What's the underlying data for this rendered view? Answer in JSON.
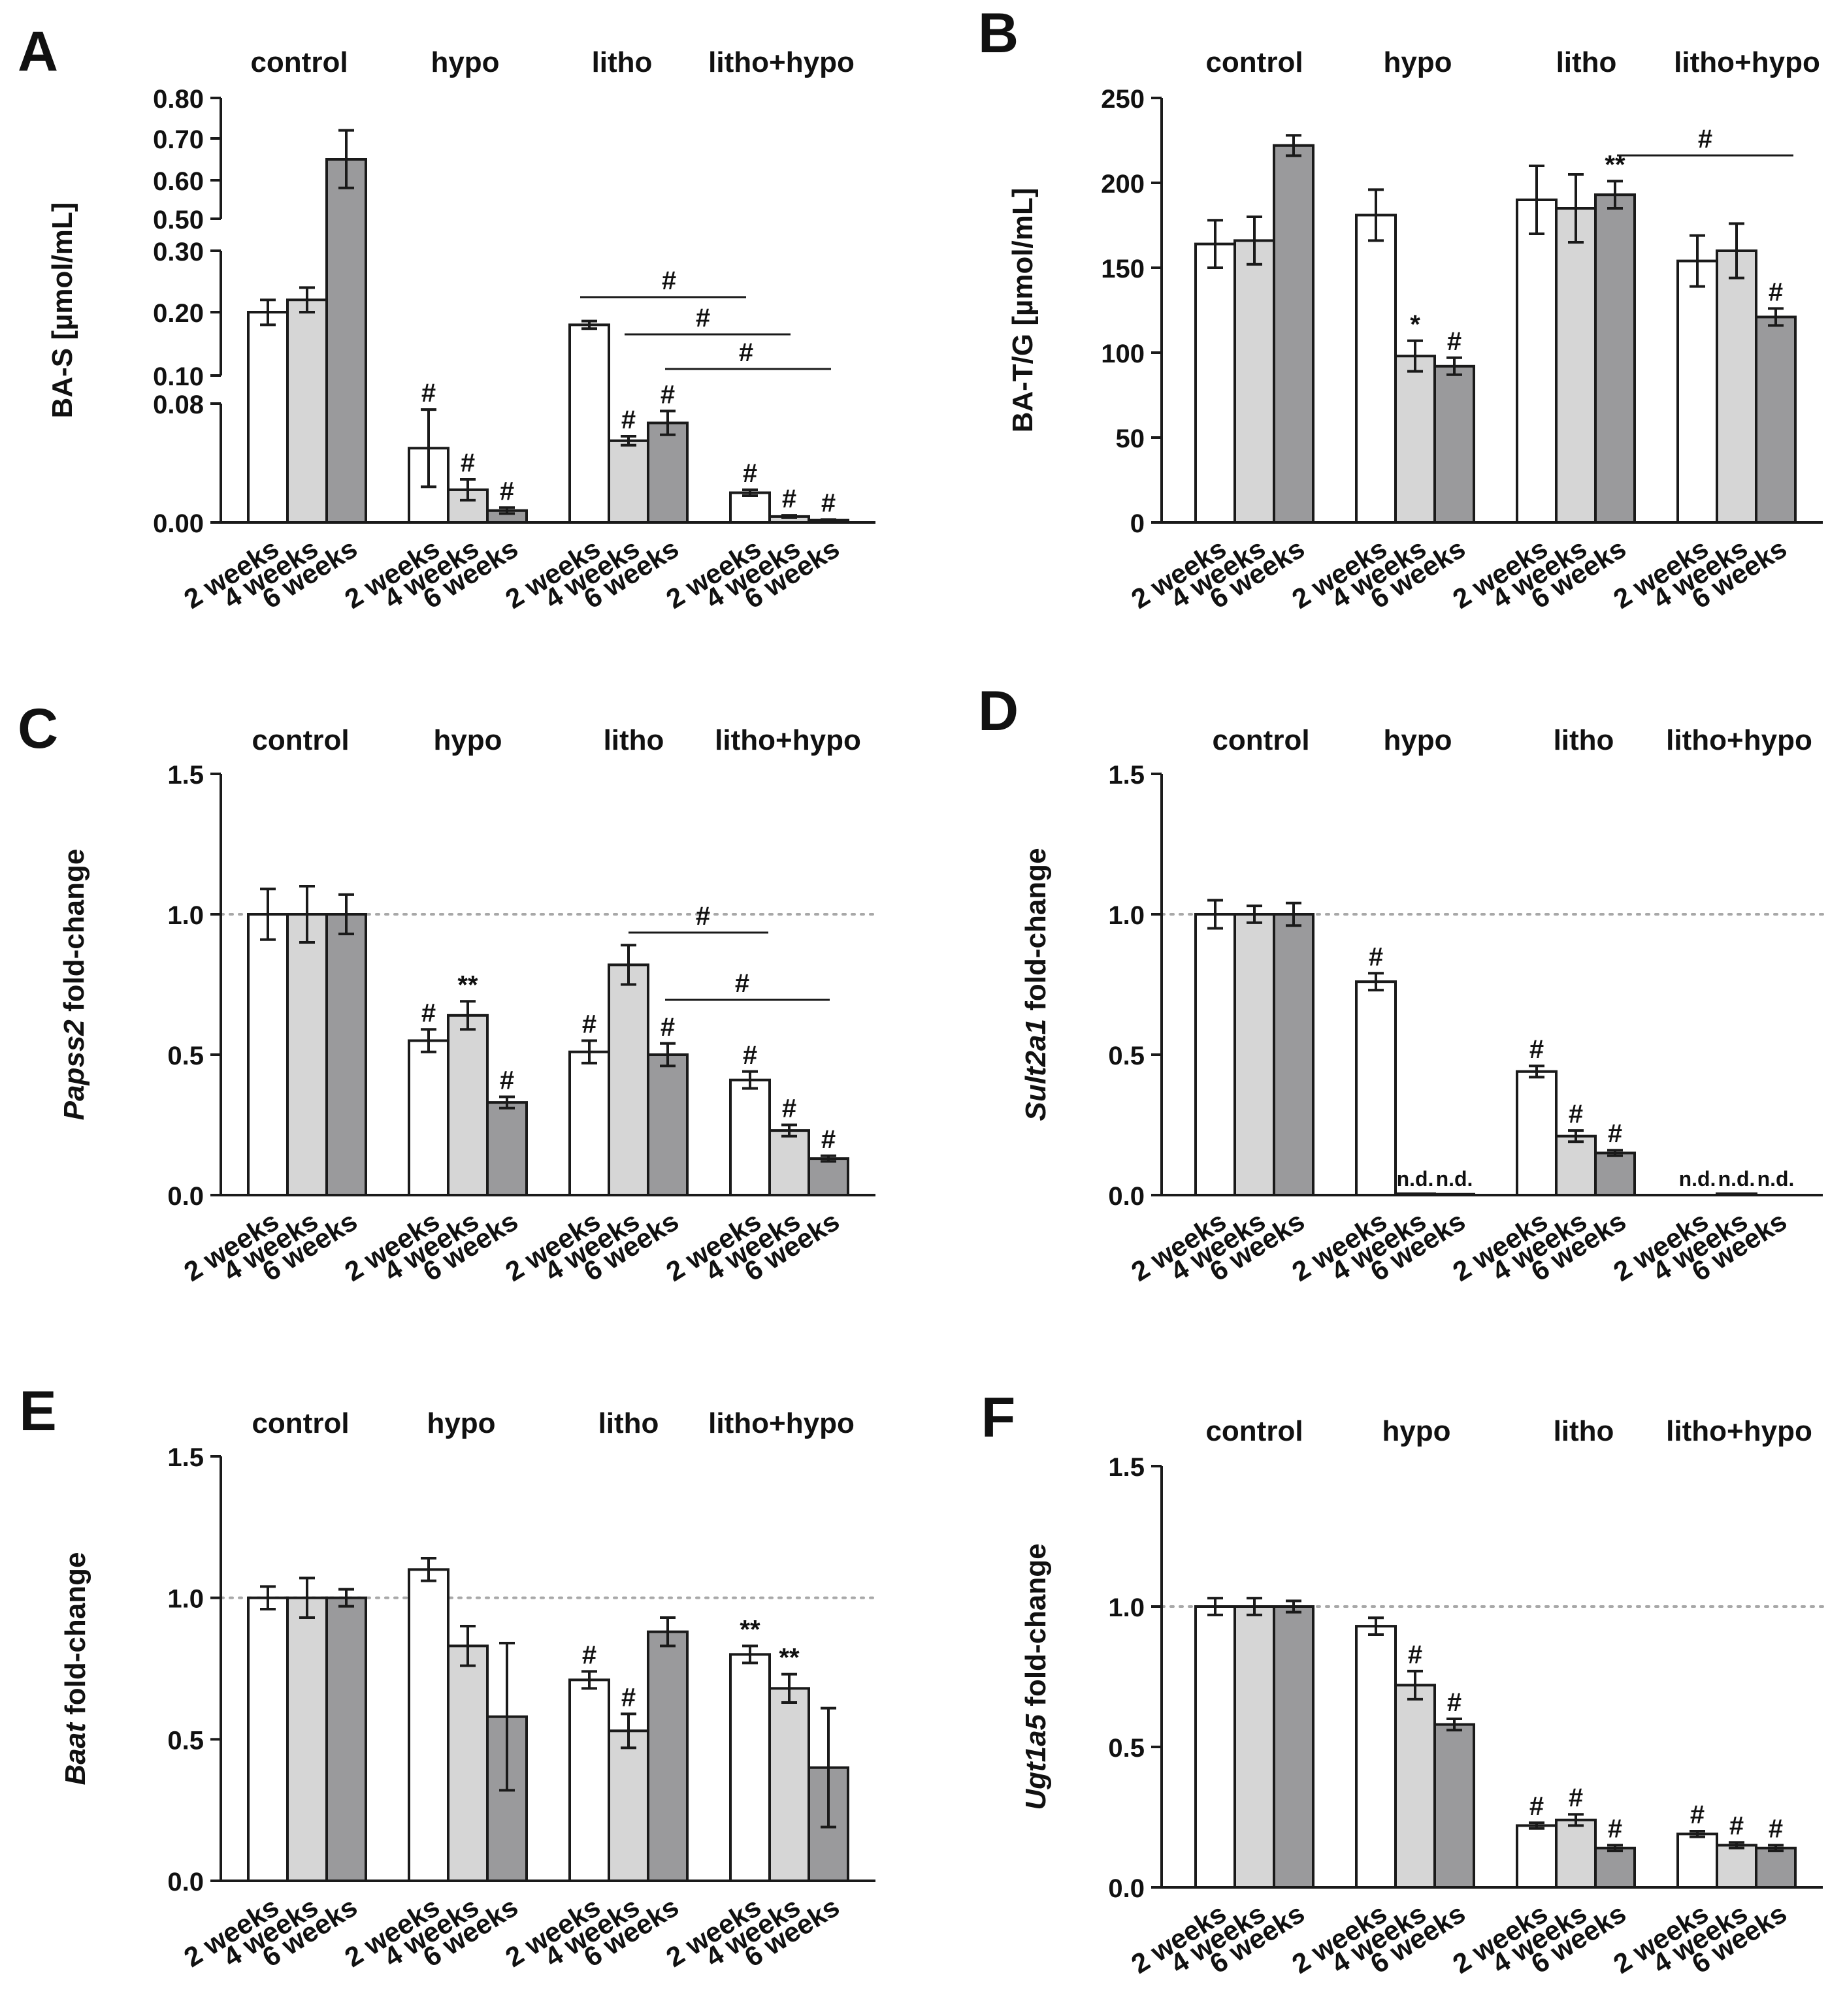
{
  "chart_data": [
    {
      "panel": "A",
      "type": "bar",
      "groups": [
        "control",
        "hypo",
        "litho",
        "litho+hypo"
      ],
      "series": [
        {
          "name": "2 weeks",
          "values": [
            0.2,
            0.05,
            0.18,
            0.02
          ],
          "errors": [
            0.02,
            0.026,
            0.006,
            0.002
          ],
          "sig": [
            "",
            "#",
            "",
            "#"
          ]
        },
        {
          "name": "4 weeks",
          "values": [
            0.22,
            0.022,
            0.055,
            0.004
          ],
          "errors": [
            0.02,
            0.007,
            0.003,
            0.0008
          ],
          "sig": [
            "",
            "#",
            "#",
            "#"
          ]
        },
        {
          "name": "6 weeks",
          "values": [
            0.65,
            0.008,
            0.067,
            0.0015
          ],
          "errors": [
            0.07,
            0.002,
            0.008,
            0.0005
          ],
          "sig": [
            "",
            "#",
            "#",
            "#"
          ]
        }
      ],
      "xticks": [
        "2 weeks",
        "4 weeks",
        "6 weeks"
      ],
      "ylabel": "BA-S [µmol/mL]",
      "yticks": [
        "0.00",
        "0.08",
        "0.10",
        "0.20",
        "0.30",
        "0.50",
        "0.60",
        "0.70",
        "0.80"
      ],
      "brackets": [
        "#",
        "#",
        "#"
      ],
      "dotted_line": false
    },
    {
      "panel": "B",
      "type": "bar",
      "groups": [
        "control",
        "hypo",
        "litho",
        "litho+hypo"
      ],
      "series": [
        {
          "name": "2 weeks",
          "values": [
            164,
            181,
            190,
            154
          ],
          "errors": [
            14,
            15,
            20,
            15
          ],
          "sig": [
            "",
            "",
            "",
            ""
          ]
        },
        {
          "name": "4 weeks",
          "values": [
            166,
            98,
            185,
            160
          ],
          "errors": [
            14,
            9,
            20,
            16
          ],
          "sig": [
            "",
            "*",
            "",
            ""
          ]
        },
        {
          "name": "6 weeks",
          "values": [
            222,
            92,
            193,
            121
          ],
          "errors": [
            6,
            5,
            8,
            5
          ],
          "sig": [
            "",
            "#",
            "**",
            "#"
          ]
        }
      ],
      "xticks": [
        "2 weeks",
        "4 weeks",
        "6 weeks"
      ],
      "ylabel": "BA-T/G [µmol/mL]",
      "yticks": [
        "0",
        "50",
        "100",
        "150",
        "200",
        "250"
      ],
      "ylim": [
        0,
        250
      ],
      "brackets": [
        "#"
      ],
      "dotted_line": false
    },
    {
      "panel": "C",
      "type": "bar",
      "groups": [
        "control",
        "hypo",
        "litho",
        "litho+hypo"
      ],
      "series": [
        {
          "name": "2 weeks",
          "values": [
            1.0,
            0.55,
            0.51,
            0.41
          ],
          "errors": [
            0.09,
            0.04,
            0.04,
            0.03
          ],
          "sig": [
            "",
            "#",
            "#",
            "#"
          ]
        },
        {
          "name": "4 weeks",
          "values": [
            1.0,
            0.64,
            0.82,
            0.23
          ],
          "errors": [
            0.1,
            0.05,
            0.07,
            0.02
          ],
          "sig": [
            "",
            "**",
            "",
            "#"
          ]
        },
        {
          "name": "6 weeks",
          "values": [
            1.0,
            0.33,
            0.5,
            0.13
          ],
          "errors": [
            0.07,
            0.02,
            0.04,
            0.01
          ],
          "sig": [
            "",
            "#",
            "#",
            "#"
          ]
        }
      ],
      "xticks": [
        "2 weeks",
        "4 weeks",
        "6 weeks"
      ],
      "ylabel": [
        "Papss2",
        " fold-change"
      ],
      "yticks": [
        "0.0",
        "0.5",
        "1.0",
        "1.5"
      ],
      "ylim": [
        0,
        1.5
      ],
      "brackets": [
        "#",
        "#"
      ],
      "dotted_line": true
    },
    {
      "panel": "D",
      "type": "bar",
      "groups": [
        "control",
        "hypo",
        "litho",
        "litho+hypo"
      ],
      "series": [
        {
          "name": "2 weeks",
          "values": [
            1.0,
            0.76,
            0.44,
            0
          ],
          "errors": [
            0.05,
            0.03,
            0.02,
            0
          ],
          "sig": [
            "",
            "#",
            "#",
            "n.d."
          ]
        },
        {
          "name": "4 weeks",
          "values": [
            1.0,
            0.005,
            0.21,
            0.005
          ],
          "errors": [
            0.03,
            0,
            0.02,
            0
          ],
          "sig": [
            "",
            "n.d.",
            "#",
            "n.d."
          ]
        },
        {
          "name": "6 weeks",
          "values": [
            1.0,
            0.003,
            0.15,
            0
          ],
          "errors": [
            0.04,
            0,
            0.01,
            0
          ],
          "sig": [
            "",
            "n.d.",
            "#",
            "n.d."
          ]
        }
      ],
      "xticks": [
        "2 weeks",
        "4 weeks",
        "6 weeks"
      ],
      "ylabel": [
        "Sult2a1",
        " fold-change"
      ],
      "yticks": [
        "0.0",
        "0.5",
        "1.0",
        "1.5"
      ],
      "ylim": [
        0,
        1.5
      ],
      "brackets": [],
      "dotted_line": true
    },
    {
      "panel": "E",
      "type": "bar",
      "groups": [
        "control",
        "hypo",
        "litho",
        "litho+hypo"
      ],
      "series": [
        {
          "name": "2 weeks",
          "values": [
            1.0,
            1.1,
            0.71,
            0.8
          ],
          "errors": [
            0.04,
            0.04,
            0.03,
            0.03
          ],
          "sig": [
            "",
            "",
            "#",
            "**"
          ]
        },
        {
          "name": "4 weeks",
          "values": [
            1.0,
            0.83,
            0.53,
            0.68
          ],
          "errors": [
            0.07,
            0.07,
            0.06,
            0.05
          ],
          "sig": [
            "",
            "",
            "#",
            "**"
          ]
        },
        {
          "name": "6 weeks",
          "values": [
            1.0,
            0.58,
            0.88,
            0.4
          ],
          "errors": [
            0.03,
            0.26,
            0.05,
            0.21
          ],
          "sig": [
            "",
            "",
            "",
            ""
          ]
        }
      ],
      "xticks": [
        "2 weeks",
        "4 weeks",
        "6 weeks"
      ],
      "ylabel": [
        "Baat",
        " fold-change"
      ],
      "yticks": [
        "0.0",
        "0.5",
        "1.0",
        "1.5"
      ],
      "ylim": [
        0,
        1.5
      ],
      "brackets": [],
      "dotted_line": true
    },
    {
      "panel": "F",
      "type": "bar",
      "groups": [
        "control",
        "hypo",
        "litho",
        "litho+hypo"
      ],
      "series": [
        {
          "name": "2 weeks",
          "values": [
            1.0,
            0.93,
            0.22,
            0.19
          ],
          "errors": [
            0.03,
            0.03,
            0.01,
            0.01
          ],
          "sig": [
            "",
            "",
            "#",
            "#"
          ]
        },
        {
          "name": "4 weeks",
          "values": [
            1.0,
            0.72,
            0.24,
            0.15
          ],
          "errors": [
            0.03,
            0.05,
            0.02,
            0.01
          ],
          "sig": [
            "",
            "#",
            "#",
            "#"
          ]
        },
        {
          "name": "6 weeks",
          "values": [
            1.0,
            0.58,
            0.14,
            0.14
          ],
          "errors": [
            0.02,
            0.02,
            0.01,
            0.01
          ],
          "sig": [
            "",
            "#",
            "#",
            "#"
          ]
        }
      ],
      "xticks": [
        "2 weeks",
        "4 weeks",
        "6 weeks"
      ],
      "ylabel": [
        "Ugt1a5",
        " fold-change"
      ],
      "yticks": [
        "0.0",
        "0.5",
        "1.0",
        "1.5"
      ],
      "ylim": [
        0,
        1.5
      ],
      "brackets": [],
      "dotted_line": true
    }
  ],
  "colors": {
    "series": [
      "#ffffff",
      "#d6d6d6",
      "#9a9a9c"
    ],
    "stroke": "#1a1a1a",
    "dotted_line": "#a8a8a8"
  }
}
